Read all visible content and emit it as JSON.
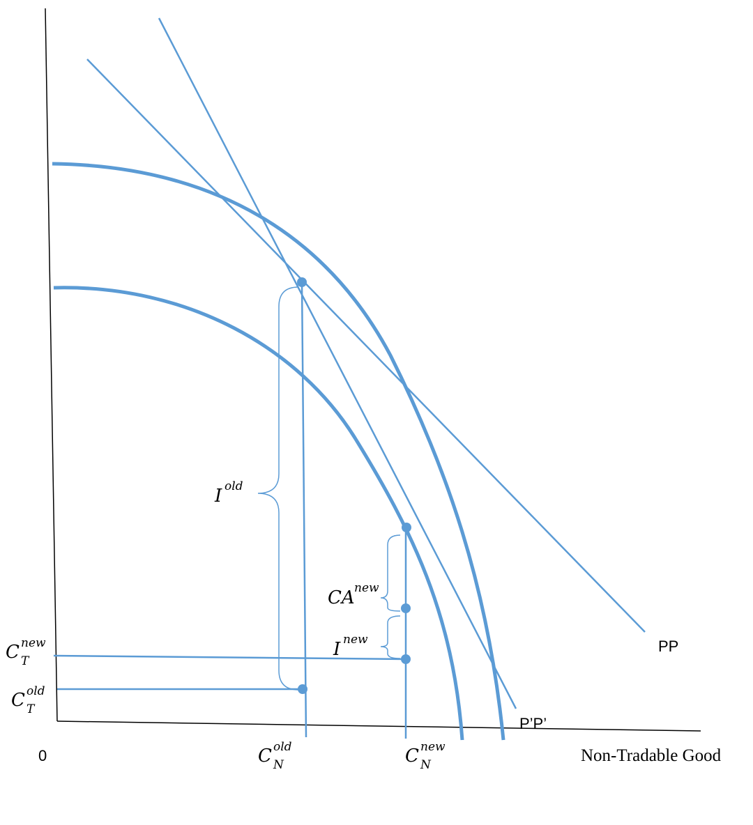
{
  "colors": {
    "line": "#5b9bd5",
    "axis": "#000000",
    "text": "#000000"
  },
  "labels": {
    "origin": "0",
    "x_axis": "Non-Tradable Good",
    "pp": "PP",
    "ppprime": "P’P’",
    "i_old": {
      "base": "I",
      "sup": "old"
    },
    "ca_new": {
      "base": "CA",
      "sup": "new"
    },
    "i_new": {
      "base": "I",
      "sup": "new"
    },
    "ct_new": {
      "base": "C",
      "sup": "new",
      "sub": "T"
    },
    "ct_old": {
      "base": "C",
      "sup": "old",
      "sub": "T"
    },
    "cn_old": {
      "base": "C",
      "sup": "old",
      "sub": "N"
    },
    "cn_new": {
      "base": "C",
      "sup": "new",
      "sub": "N"
    }
  }
}
